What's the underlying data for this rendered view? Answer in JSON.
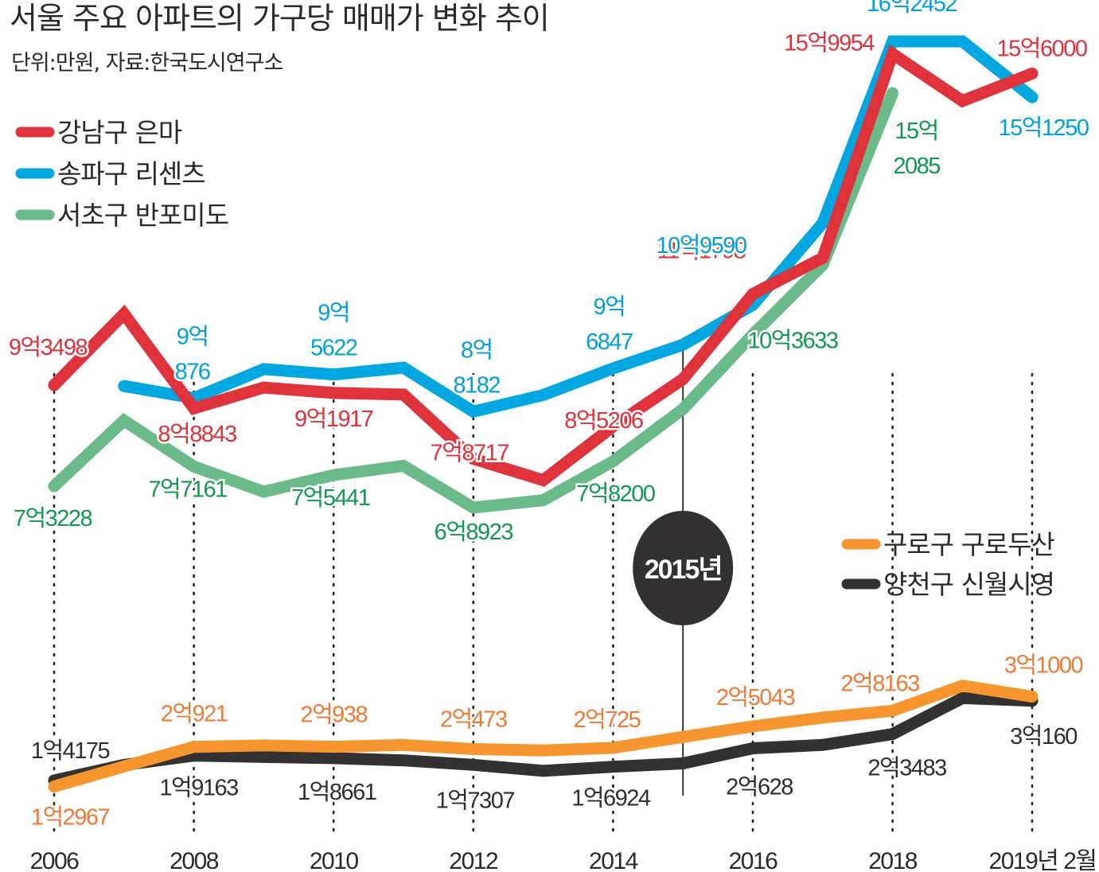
{
  "chart_data": {
    "type": "line",
    "title": "서울 주요 아파트의 가구당 매매가 변화 추이",
    "subtitle": "단위:만원, 자료:한국도시연구소",
    "xlabel": "",
    "ylabel": "",
    "unit": "만원",
    "grid": false,
    "x": [
      2006,
      2007,
      2008,
      2009,
      2010,
      2011,
      2012,
      2013,
      2014,
      2015,
      2016,
      2017,
      2018,
      2019,
      2019.2
    ],
    "x_tick_values": [
      2006,
      2008,
      2010,
      2012,
      2014,
      2016,
      2018,
      2019.2
    ],
    "x_tick_labels": [
      "2006",
      "2008",
      "2010",
      "2012",
      "2014",
      "2016",
      "2018",
      "2019년 2월"
    ],
    "ylim": [
      0,
      170000
    ],
    "annotation": {
      "x": 2015,
      "label": "2015년"
    },
    "legend_groups": [
      {
        "placement": "top-left",
        "series": [
          0,
          1,
          2
        ]
      },
      {
        "placement": "center-right",
        "series": [
          3,
          4
        ]
      }
    ],
    "series": [
      {
        "name": "강남구 은마",
        "color": "#e0323a",
        "label_color": "#e0323a",
        "values": [
          93498,
          107800,
          88843,
          93000,
          91917,
          91600,
          78717,
          74400,
          85206,
          94700,
          111798,
          119000,
          159954,
          150500,
          156000
        ],
        "labels": [
          {
            "x": 2006,
            "text": "9억3498"
          },
          {
            "x": 2008,
            "text": "8억8843"
          },
          {
            "x": 2010,
            "text": "9억1917"
          },
          {
            "x": 2012,
            "text": "7억8717"
          },
          {
            "x": 2014,
            "text": "8억5206"
          },
          {
            "x": 2016,
            "text": "11억1798"
          },
          {
            "x": 2018,
            "text": "15억9954"
          },
          {
            "x": 2019.2,
            "text": "15억6000"
          }
        ]
      },
      {
        "name": "송파구 리센츠",
        "color": "#00a7e1",
        "label_color": "#00a0dc",
        "values": [
          null,
          93300,
          90876,
          96700,
          95622,
          97000,
          88182,
          91500,
          96847,
          101600,
          109590,
          126000,
          162452,
          162452,
          151250
        ],
        "labels": [
          {
            "x": 2008,
            "text": "9억\n876"
          },
          {
            "x": 2010,
            "text": "9억\n5622"
          },
          {
            "x": 2012,
            "text": "8억\n8182"
          },
          {
            "x": 2014,
            "text": "9억\n6847"
          },
          {
            "x": 2016,
            "text": "10억9590"
          },
          {
            "x": 2018,
            "text": "16억2452"
          },
          {
            "x": 2019.2,
            "text": "15억1250"
          }
        ]
      },
      {
        "name": "서초구 반포미도",
        "color": "#6aba8a",
        "label_color": "#119a4e",
        "values": [
          73228,
          86400,
          77161,
          72100,
          75441,
          77300,
          68923,
          70400,
          78200,
          88700,
          103633,
          117600,
          152085,
          null,
          null
        ],
        "labels": [
          {
            "x": 2006,
            "text": "7억3228"
          },
          {
            "x": 2008,
            "text": "7억7161"
          },
          {
            "x": 2010,
            "text": "7억5441"
          },
          {
            "x": 2012,
            "text": "6억8923"
          },
          {
            "x": 2014,
            "text": "7억8200"
          },
          {
            "x": 2016,
            "text": "10억3633"
          },
          {
            "x": 2018,
            "text": "15억\n2085"
          }
        ]
      },
      {
        "name": "구로구 구로두산",
        "color": "#f7962f",
        "label_color": "#f07a35",
        "values": [
          12967,
          17000,
          20921,
          21200,
          20938,
          21300,
          20473,
          20200,
          20725,
          22900,
          25043,
          26800,
          28163,
          33200,
          31000
        ],
        "labels": [
          {
            "x": 2006,
            "text": "1억2967"
          },
          {
            "x": 2008,
            "text": "2억921"
          },
          {
            "x": 2010,
            "text": "2억938"
          },
          {
            "x": 2012,
            "text": "2억473"
          },
          {
            "x": 2014,
            "text": "2억725"
          },
          {
            "x": 2016,
            "text": "2억5043"
          },
          {
            "x": 2018,
            "text": "2억8163"
          },
          {
            "x": 2019.2,
            "text": "3억1000"
          }
        ]
      },
      {
        "name": "양천구 신월시영",
        "color": "#333132",
        "label_color": "#2e2e2e",
        "values": [
          14175,
          17300,
          19163,
          18900,
          18661,
          18200,
          17307,
          16100,
          16924,
          17600,
          20628,
          21300,
          23483,
          30700,
          30160
        ],
        "labels": [
          {
            "x": 2006,
            "text": "1억4175"
          },
          {
            "x": 2008,
            "text": "1억9163"
          },
          {
            "x": 2010,
            "text": "1억8661"
          },
          {
            "x": 2012,
            "text": "1억7307"
          },
          {
            "x": 2014,
            "text": "1억6924"
          },
          {
            "x": 2016,
            "text": "2억628"
          },
          {
            "x": 2018,
            "text": "2억3483"
          },
          {
            "x": 2019.2,
            "text": "3억160"
          }
        ]
      }
    ]
  }
}
